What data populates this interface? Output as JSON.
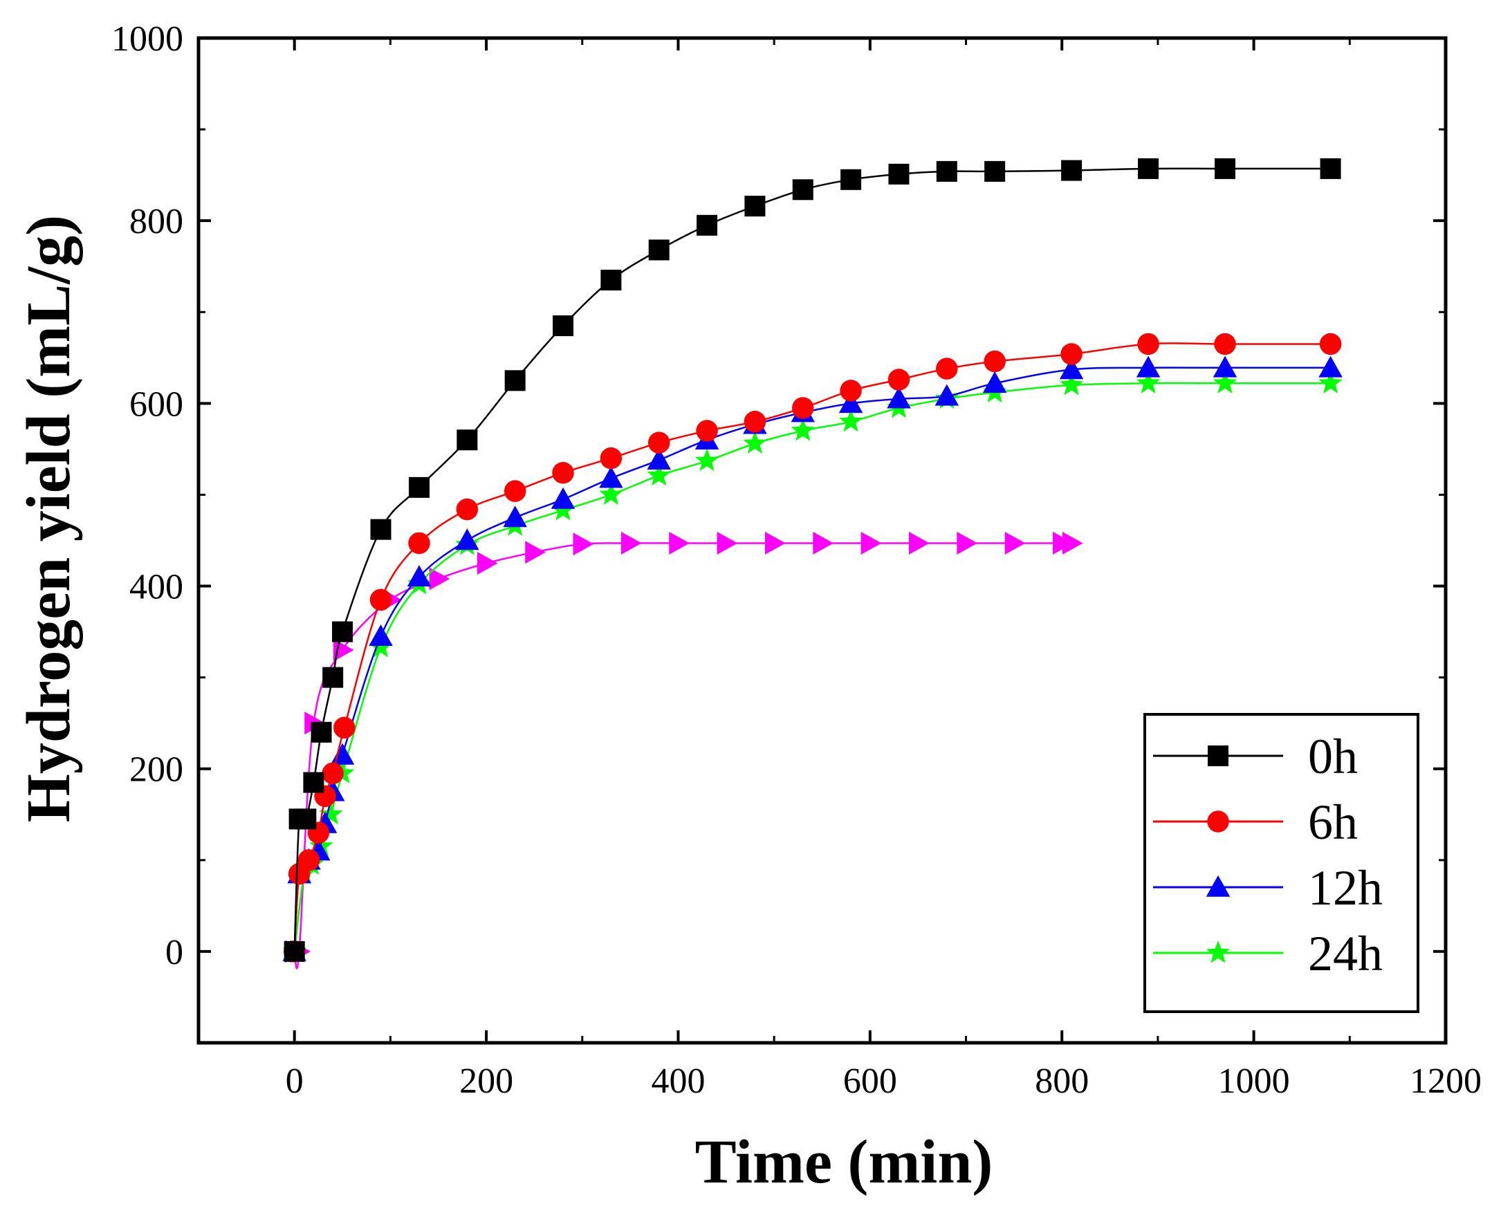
{
  "chart_data": {
    "type": "line",
    "title": "",
    "xlabel": "Time  (min)",
    "ylabel": "Hydrogen yield  (mL/g)",
    "xlim": [
      -100,
      1200
    ],
    "ylim": [
      -100,
      1000
    ],
    "x_ticks": [
      0,
      200,
      400,
      600,
      800,
      1000,
      1200
    ],
    "y_ticks": [
      0,
      200,
      400,
      600,
      800,
      1000
    ],
    "grid": false,
    "legend_position": "bottom-right",
    "series": [
      {
        "name": "0h",
        "color": "#000000",
        "marker": "square",
        "points": [
          [
            0,
            0
          ],
          [
            5,
            145
          ],
          [
            12,
            145
          ],
          [
            20,
            185
          ],
          [
            28,
            240
          ],
          [
            40,
            300
          ],
          [
            50,
            350
          ],
          [
            90,
            462
          ],
          [
            130,
            508
          ],
          [
            180,
            560
          ],
          [
            230,
            625
          ],
          [
            280,
            685
          ],
          [
            330,
            735
          ],
          [
            380,
            768
          ],
          [
            430,
            795
          ],
          [
            480,
            816
          ],
          [
            530,
            834
          ],
          [
            580,
            845
          ],
          [
            630,
            851
          ],
          [
            680,
            854
          ],
          [
            730,
            854
          ],
          [
            810,
            855
          ],
          [
            890,
            857
          ],
          [
            970,
            857
          ],
          [
            1080,
            857
          ]
        ]
      },
      {
        "name": "6h",
        "color": "#ff0000",
        "marker": "circle",
        "points": [
          [
            0,
            0
          ],
          [
            5,
            85
          ],
          [
            15,
            100
          ],
          [
            25,
            130
          ],
          [
            32,
            170
          ],
          [
            40,
            195
          ],
          [
            52,
            245
          ],
          [
            90,
            385
          ],
          [
            130,
            447
          ],
          [
            180,
            484
          ],
          [
            230,
            504
          ],
          [
            280,
            524
          ],
          [
            330,
            540
          ],
          [
            380,
            557
          ],
          [
            430,
            570
          ],
          [
            480,
            580
          ],
          [
            530,
            595
          ],
          [
            580,
            614
          ],
          [
            630,
            626
          ],
          [
            680,
            638
          ],
          [
            730,
            646
          ],
          [
            810,
            654
          ],
          [
            890,
            665
          ],
          [
            970,
            665
          ],
          [
            1080,
            665
          ]
        ]
      },
      {
        "name": "12h",
        "color": "#0000ff",
        "marker": "triangle",
        "points": [
          [
            0,
            0
          ],
          [
            5,
            85
          ],
          [
            15,
            100
          ],
          [
            25,
            110
          ],
          [
            32,
            140
          ],
          [
            40,
            175
          ],
          [
            50,
            215
          ],
          [
            90,
            345
          ],
          [
            130,
            410
          ],
          [
            180,
            450
          ],
          [
            230,
            475
          ],
          [
            280,
            495
          ],
          [
            330,
            518
          ],
          [
            380,
            538
          ],
          [
            430,
            560
          ],
          [
            480,
            577
          ],
          [
            530,
            590
          ],
          [
            580,
            600
          ],
          [
            630,
            605
          ],
          [
            680,
            608
          ],
          [
            730,
            622
          ],
          [
            810,
            637
          ],
          [
            890,
            639
          ],
          [
            970,
            639
          ],
          [
            1080,
            639
          ]
        ]
      },
      {
        "name": "24h",
        "color": "#00ff00",
        "marker": "star",
        "points": [
          [
            0,
            0
          ],
          [
            10,
            85
          ],
          [
            18,
            95
          ],
          [
            28,
            115
          ],
          [
            38,
            150
          ],
          [
            50,
            195
          ],
          [
            90,
            333
          ],
          [
            130,
            402
          ],
          [
            180,
            445
          ],
          [
            230,
            466
          ],
          [
            280,
            483
          ],
          [
            330,
            500
          ],
          [
            380,
            521
          ],
          [
            430,
            537
          ],
          [
            480,
            556
          ],
          [
            530,
            570
          ],
          [
            580,
            580
          ],
          [
            630,
            595
          ],
          [
            680,
            605
          ],
          [
            730,
            612
          ],
          [
            810,
            620
          ],
          [
            890,
            622
          ],
          [
            970,
            622
          ],
          [
            1080,
            622
          ]
        ]
      },
      {
        "name": "",
        "color": "#ff00ff",
        "marker": "triangle-right",
        "points": [
          [
            0,
            0
          ],
          [
            5,
            0
          ],
          [
            20,
            250
          ],
          [
            50,
            330
          ],
          [
            100,
            385
          ],
          [
            150,
            408
          ],
          [
            200,
            425
          ],
          [
            250,
            437
          ],
          [
            300,
            446
          ],
          [
            350,
            447
          ],
          [
            400,
            447
          ],
          [
            450,
            447
          ],
          [
            500,
            447
          ],
          [
            550,
            447
          ],
          [
            600,
            447
          ],
          [
            650,
            447
          ],
          [
            700,
            447
          ],
          [
            750,
            447
          ],
          [
            800,
            447
          ],
          [
            810,
            447
          ]
        ]
      }
    ]
  }
}
